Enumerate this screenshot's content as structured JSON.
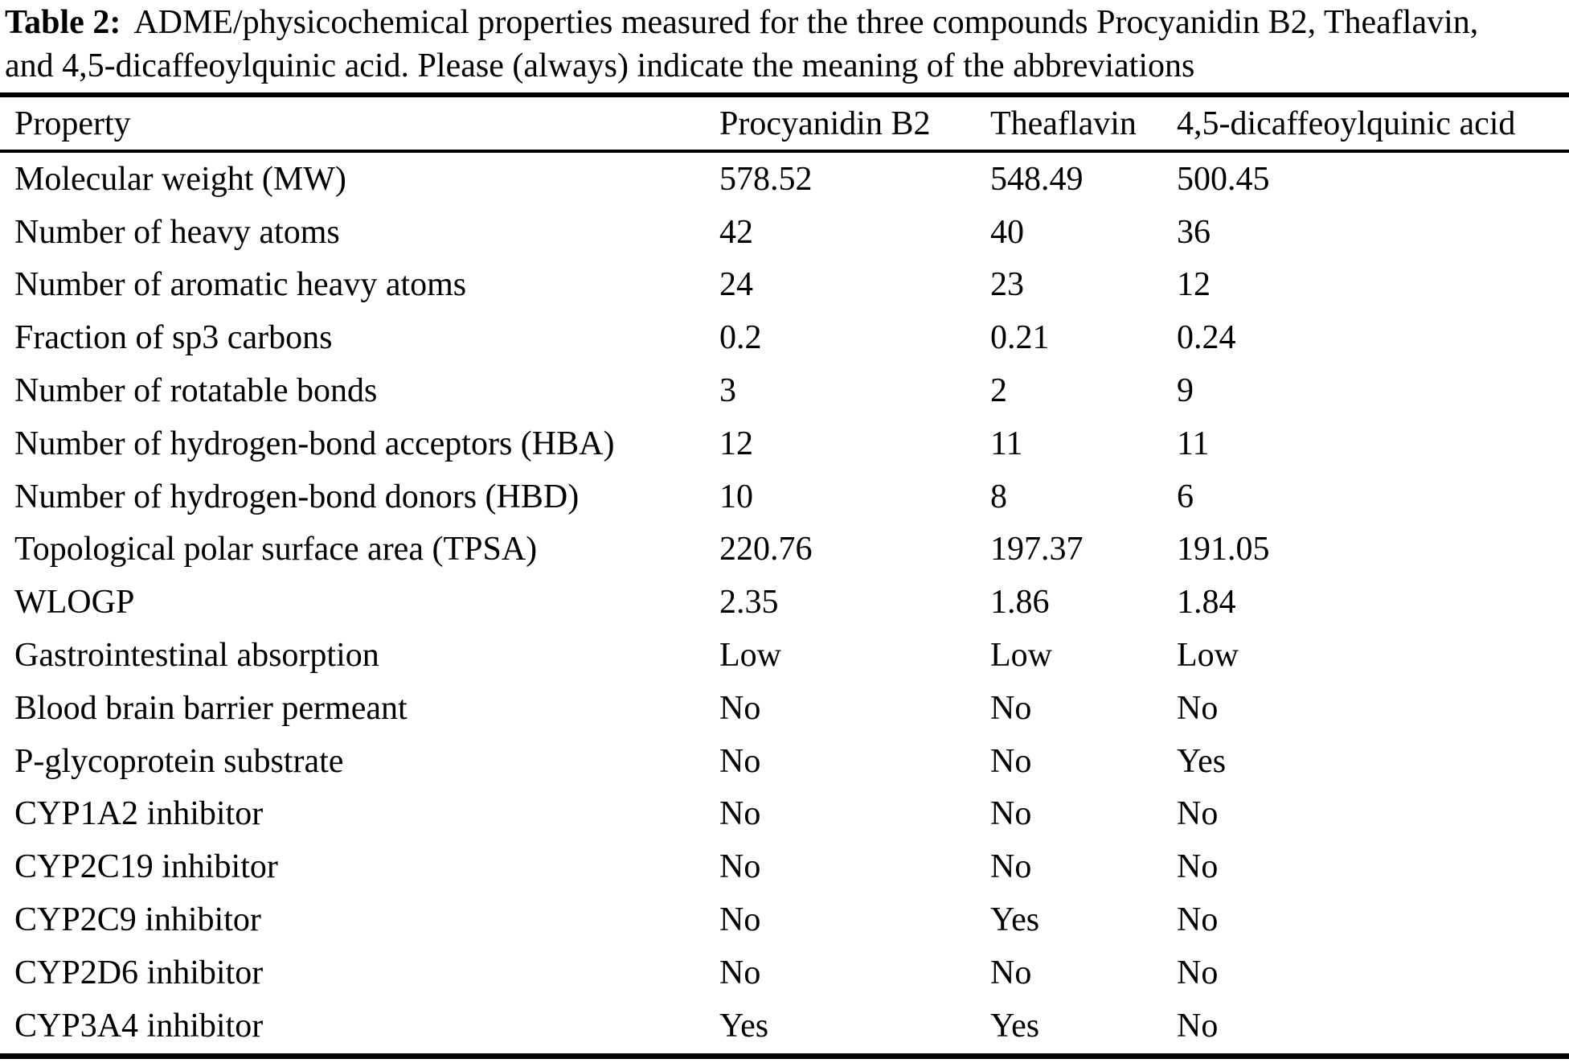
{
  "caption": {
    "label": "Table 2:",
    "line1": "ADME/physicochemical properties measured for the three compounds Procyanidin B2, Theaflavin,",
    "line2": "and 4,5-dicaffeoylquinic acid. Please (always) indicate the meaning of the abbreviations"
  },
  "table": {
    "columns": [
      "Property",
      "Procyanidin B2",
      "Theaflavin",
      "4,5-dicaffeoylquinic acid"
    ],
    "rows": [
      {
        "property": "Molecular weight (MW)",
        "values": [
          "578.52",
          "548.49",
          "500.45"
        ]
      },
      {
        "property": "Number of heavy atoms",
        "values": [
          "42",
          "40",
          "36"
        ]
      },
      {
        "property": "Number of aromatic heavy atoms",
        "values": [
          "24",
          "23",
          "12"
        ]
      },
      {
        "property": "Fraction of sp3 carbons",
        "values": [
          "0.2",
          "0.21",
          "0.24"
        ]
      },
      {
        "property": "Number of rotatable bonds",
        "values": [
          "3",
          "2",
          "9"
        ]
      },
      {
        "property": "Number of hydrogen-bond acceptors (HBA)",
        "values": [
          "12",
          "11",
          "11"
        ]
      },
      {
        "property": "Number of hydrogen-bond donors (HBD)",
        "values": [
          "10",
          "8",
          "6"
        ]
      },
      {
        "property": "Topological polar surface area (TPSA)",
        "values": [
          "220.76",
          "197.37",
          "191.05"
        ]
      },
      {
        "property": "WLOGP",
        "values": [
          "2.35",
          "1.86",
          "1.84"
        ]
      },
      {
        "property": "Gastrointestinal absorption",
        "values": [
          "Low",
          "Low",
          "Low"
        ]
      },
      {
        "property": "Blood brain barrier permeant",
        "values": [
          "No",
          "No",
          "No"
        ]
      },
      {
        "property": "P-glycoprotein substrate",
        "values": [
          "No",
          "No",
          "Yes"
        ]
      },
      {
        "property": "CYP1A2 inhibitor",
        "values": [
          "No",
          "No",
          "No"
        ]
      },
      {
        "property": "CYP2C19 inhibitor",
        "values": [
          "No",
          "No",
          "No"
        ]
      },
      {
        "property": "CYP2C9 inhibitor",
        "values": [
          "No",
          "Yes",
          "No"
        ]
      },
      {
        "property": "CYP2D6 inhibitor",
        "values": [
          "No",
          "No",
          "No"
        ]
      },
      {
        "property": "CYP3A4 inhibitor",
        "values": [
          "Yes",
          "Yes",
          "No"
        ]
      }
    ]
  },
  "colors": {
    "text": "#000000",
    "background": "#ffffff",
    "rule": "#000000"
  }
}
